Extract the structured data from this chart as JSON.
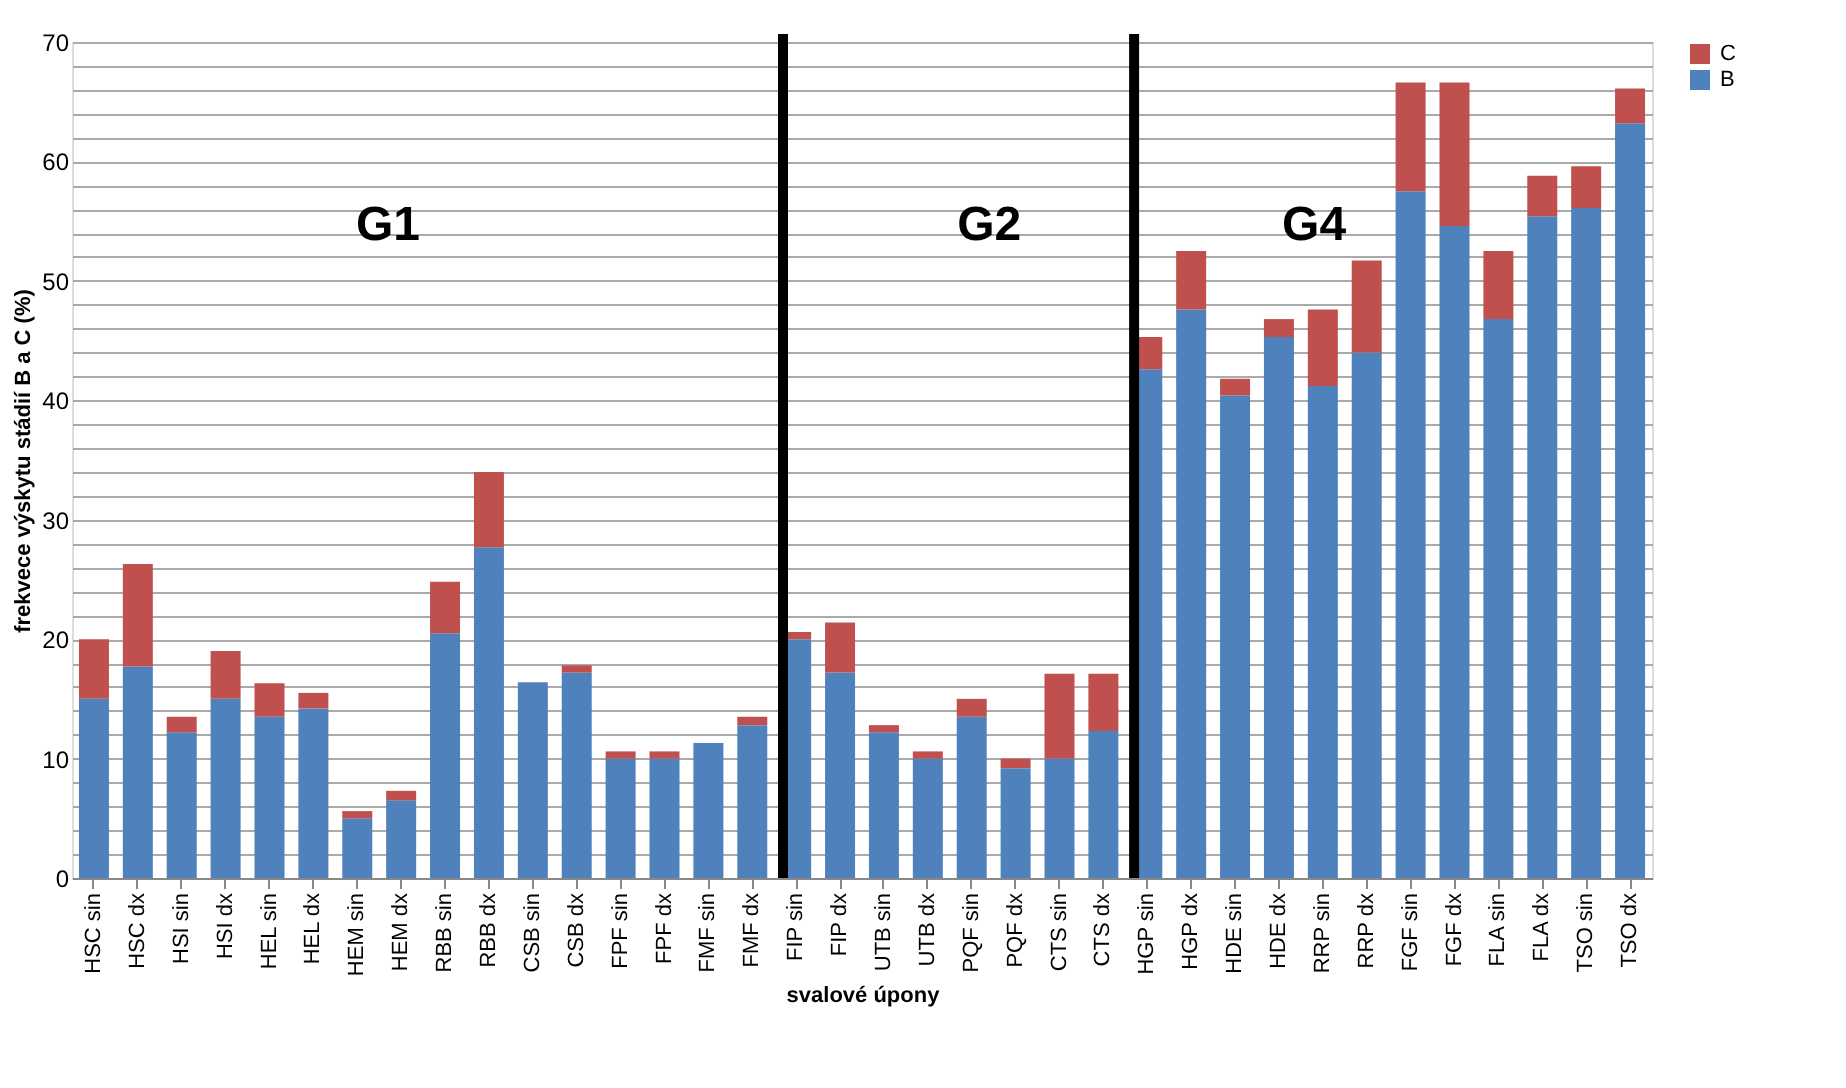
{
  "chart_data": {
    "type": "bar",
    "stacked": true,
    "ylabel": "frekvece výskytu stádií B a C (%)",
    "xlabel": "svalové úpony",
    "categories": [
      "HSC sin",
      "HSC dx",
      "HSI sin",
      "HSI dx",
      "HEL sin",
      "HEL dx",
      "HEM sin",
      "HEM dx",
      "RBB sin",
      "RBB dx",
      "CSB sin",
      "CSB dx",
      "FPF sin",
      "FPF dx",
      "FMF sin",
      "FMF dx",
      "FIP sin",
      "FIP dx",
      "UTB sin",
      "UTB dx",
      "PQF sin",
      "PQF dx",
      "CTS sin",
      "CTS dx",
      "HGP sin",
      "HGP dx",
      "HDE sin",
      "HDE dx",
      "RRP sin",
      "RRP dx",
      "FGF sin",
      "FGF dx",
      "FLA sin",
      "FLA dx",
      "TSO sin",
      "TSO dx"
    ],
    "series": [
      {
        "name": "B",
        "color": "#4f81bd",
        "values": [
          15,
          17.7,
          12.2,
          15,
          13.5,
          14.2,
          5,
          6.5,
          20.5,
          27.7,
          16.4,
          17.2,
          10,
          10,
          11.3,
          12.8,
          20,
          17.2,
          12.2,
          10,
          13.5,
          9.2,
          10,
          12.3,
          42.6,
          47.6,
          40.4,
          45.3,
          41.2,
          44,
          57.5,
          54.6,
          46.8,
          55.4,
          56.1,
          63.2
        ]
      },
      {
        "name": "C",
        "color": "#c0504d",
        "values": [
          5,
          8.6,
          1.3,
          4,
          2.8,
          1.3,
          0.6,
          0.8,
          4.3,
          6.3,
          0,
          0.6,
          0.6,
          0.6,
          0,
          0.7,
          0.6,
          4.2,
          0.6,
          0.6,
          1.5,
          0.8,
          7.1,
          4.8,
          2.7,
          4.9,
          1.4,
          1.5,
          6.4,
          7.7,
          9.1,
          12,
          5.7,
          3.4,
          3.5,
          2.9
        ]
      }
    ],
    "ylim": [
      0,
      70
    ],
    "yticks": [
      0,
      {
        "value": 2,
        "label": null
      },
      {
        "value": 4,
        "label": null
      },
      {
        "value": 6,
        "label": null
      },
      {
        "value": 8,
        "label": null
      },
      10,
      {
        "value": 12,
        "label": null
      },
      {
        "value": 14,
        "label": null
      },
      {
        "value": 16,
        "label": null
      },
      {
        "value": 18,
        "label": null
      },
      20,
      {
        "value": 22,
        "label": null
      },
      {
        "value": 24,
        "label": null
      },
      {
        "value": 26,
        "label": null
      },
      {
        "value": 28,
        "label": null
      },
      30,
      {
        "value": 32,
        "label": null
      },
      {
        "value": 34,
        "label": null
      },
      {
        "value": 36,
        "label": null
      },
      {
        "value": 38,
        "label": null
      },
      40,
      {
        "value": 42,
        "label": null
      },
      {
        "value": 44,
        "label": null
      },
      {
        "value": 46,
        "label": null
      },
      {
        "value": 48,
        "label": null
      },
      50,
      {
        "value": 52,
        "label": null
      },
      {
        "value": 54,
        "label": null
      },
      {
        "value": 56,
        "label": null
      },
      {
        "value": 58,
        "label": null
      },
      60,
      {
        "value": 62,
        "label": null
      },
      {
        "value": 64,
        "label": null
      },
      {
        "value": 66,
        "label": null
      },
      {
        "value": 68,
        "label": null
      },
      70
    ],
    "grid": "y",
    "legend": "right",
    "ref_lines": [
      {
        "axis": "x",
        "value": "FIP sin",
        "color": "#000000"
      },
      {
        "axis": "x",
        "value": "HGP sin",
        "color": "#000000"
      }
    ],
    "annotations": [
      "G1",
      "G2",
      "G4"
    ]
  }
}
